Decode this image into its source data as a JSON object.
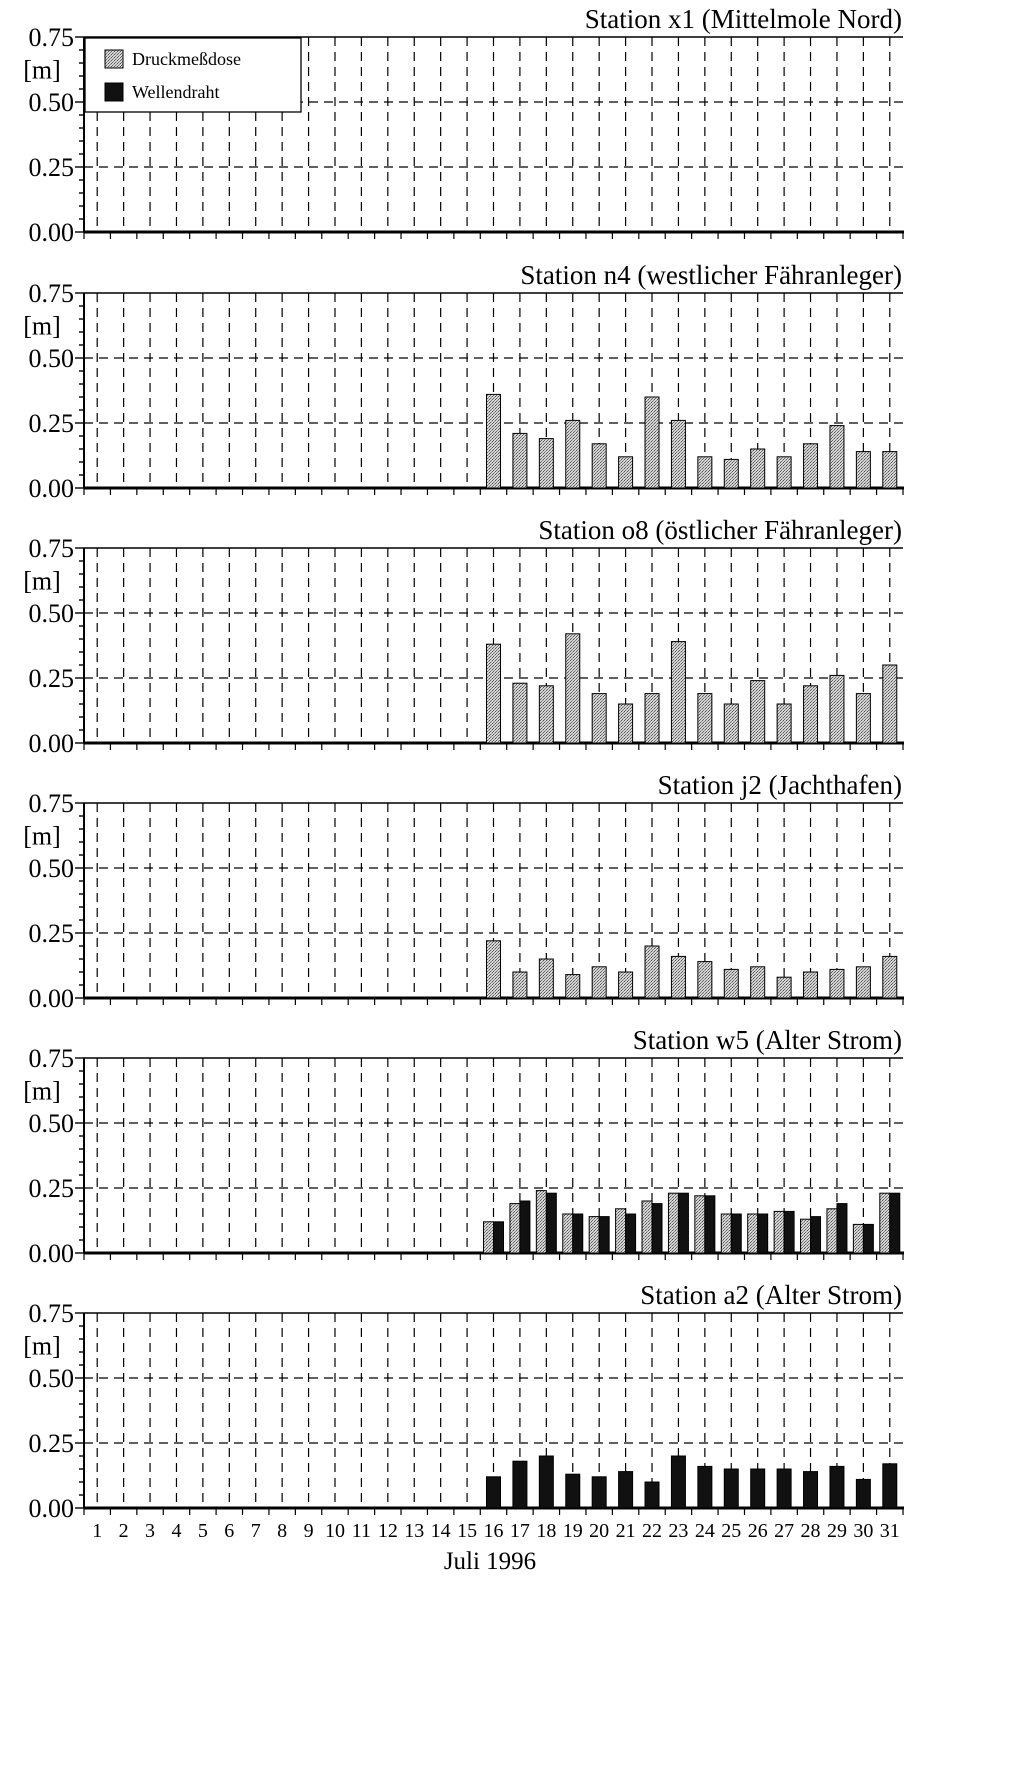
{
  "page": {
    "xlabel": "Juli 1996",
    "unit_label": "[m]"
  },
  "legend": {
    "items": [
      {
        "label": "Druckmeßdose",
        "color": "#b8b8b8",
        "pattern": "dotted-gray"
      },
      {
        "label": "Wellendraht",
        "color": "#111111",
        "pattern": "solid-black"
      }
    ]
  },
  "chart_data": [
    {
      "type": "bar",
      "title": "Station x1 (Mittelmole Nord)",
      "xlabel": "Juli 1996",
      "ylabel": "[m]",
      "ylim": [
        0,
        0.75
      ],
      "yticks": [
        "0.00",
        "0.25",
        "0.50",
        "0.75"
      ],
      "categories": [
        "1",
        "2",
        "3",
        "4",
        "5",
        "6",
        "7",
        "8",
        "9",
        "10",
        "11",
        "12",
        "13",
        "14",
        "15",
        "16",
        "17",
        "18",
        "19",
        "20",
        "21",
        "22",
        "23",
        "24",
        "25",
        "26",
        "27",
        "28",
        "29",
        "30",
        "31"
      ],
      "series": [
        {
          "name": "Druckmeßdose",
          "values": [
            null,
            null,
            null,
            null,
            null,
            null,
            null,
            null,
            null,
            null,
            null,
            null,
            null,
            null,
            null,
            null,
            null,
            null,
            null,
            null,
            null,
            null,
            null,
            null,
            null,
            null,
            null,
            null,
            null,
            null,
            null
          ]
        },
        {
          "name": "Wellendraht",
          "values": [
            null,
            null,
            null,
            null,
            null,
            null,
            null,
            null,
            null,
            null,
            null,
            null,
            null,
            null,
            null,
            null,
            null,
            null,
            null,
            null,
            null,
            null,
            null,
            null,
            null,
            null,
            null,
            null,
            null,
            null,
            null
          ]
        }
      ],
      "grid": true,
      "legend_position": "top-left"
    },
    {
      "type": "bar",
      "title": "Station n4 (westlicher Fähranleger)",
      "xlabel": "Juli 1996",
      "ylabel": "[m]",
      "ylim": [
        0,
        0.75
      ],
      "yticks": [
        "0.00",
        "0.25",
        "0.50",
        "0.75"
      ],
      "categories": [
        "1",
        "2",
        "3",
        "4",
        "5",
        "6",
        "7",
        "8",
        "9",
        "10",
        "11",
        "12",
        "13",
        "14",
        "15",
        "16",
        "17",
        "18",
        "19",
        "20",
        "21",
        "22",
        "23",
        "24",
        "25",
        "26",
        "27",
        "28",
        "29",
        "30",
        "31"
      ],
      "series": [
        {
          "name": "Druckmeßdose",
          "values": [
            null,
            null,
            null,
            null,
            null,
            null,
            null,
            null,
            null,
            null,
            null,
            null,
            null,
            null,
            null,
            0.36,
            0.21,
            0.19,
            0.26,
            0.17,
            0.12,
            0.35,
            0.26,
            0.12,
            0.11,
            0.15,
            0.12,
            0.17,
            0.24,
            0.14,
            0.14
          ]
        },
        {
          "name": "Wellendraht",
          "values": [
            null,
            null,
            null,
            null,
            null,
            null,
            null,
            null,
            null,
            null,
            null,
            null,
            null,
            null,
            null,
            null,
            null,
            null,
            null,
            null,
            null,
            null,
            null,
            null,
            null,
            null,
            null,
            null,
            null,
            null,
            null
          ]
        }
      ],
      "grid": true
    },
    {
      "type": "bar",
      "title": "Station o8 (östlicher Fähranleger)",
      "xlabel": "Juli 1996",
      "ylabel": "[m]",
      "ylim": [
        0,
        0.75
      ],
      "yticks": [
        "0.00",
        "0.25",
        "0.50",
        "0.75"
      ],
      "categories": [
        "1",
        "2",
        "3",
        "4",
        "5",
        "6",
        "7",
        "8",
        "9",
        "10",
        "11",
        "12",
        "13",
        "14",
        "15",
        "16",
        "17",
        "18",
        "19",
        "20",
        "21",
        "22",
        "23",
        "24",
        "25",
        "26",
        "27",
        "28",
        "29",
        "30",
        "31"
      ],
      "series": [
        {
          "name": "Druckmeßdose",
          "values": [
            null,
            null,
            null,
            null,
            null,
            null,
            null,
            null,
            null,
            null,
            null,
            null,
            null,
            null,
            null,
            0.38,
            0.23,
            0.22,
            0.42,
            0.19,
            0.15,
            0.19,
            0.39,
            0.19,
            0.15,
            0.24,
            0.15,
            0.22,
            0.26,
            0.19,
            0.3
          ]
        },
        {
          "name": "Wellendraht",
          "values": [
            null,
            null,
            null,
            null,
            null,
            null,
            null,
            null,
            null,
            null,
            null,
            null,
            null,
            null,
            null,
            null,
            null,
            null,
            null,
            null,
            null,
            null,
            null,
            null,
            null,
            null,
            null,
            null,
            null,
            null,
            null
          ]
        }
      ],
      "grid": true
    },
    {
      "type": "bar",
      "title": "Station j2 (Jachthafen)",
      "xlabel": "Juli 1996",
      "ylabel": "[m]",
      "ylim": [
        0,
        0.75
      ],
      "yticks": [
        "0.00",
        "0.25",
        "0.50",
        "0.75"
      ],
      "categories": [
        "1",
        "2",
        "3",
        "4",
        "5",
        "6",
        "7",
        "8",
        "9",
        "10",
        "11",
        "12",
        "13",
        "14",
        "15",
        "16",
        "17",
        "18",
        "19",
        "20",
        "21",
        "22",
        "23",
        "24",
        "25",
        "26",
        "27",
        "28",
        "29",
        "30",
        "31"
      ],
      "series": [
        {
          "name": "Druckmeßdose",
          "values": [
            null,
            null,
            null,
            null,
            null,
            null,
            null,
            null,
            null,
            null,
            null,
            null,
            null,
            null,
            null,
            0.22,
            0.1,
            0.15,
            0.09,
            0.12,
            0.1,
            0.2,
            0.16,
            0.14,
            0.11,
            0.12,
            0.08,
            0.1,
            0.11,
            0.12,
            0.16
          ]
        },
        {
          "name": "Wellendraht",
          "values": [
            null,
            null,
            null,
            null,
            null,
            null,
            null,
            null,
            null,
            null,
            null,
            null,
            null,
            null,
            null,
            null,
            null,
            null,
            null,
            null,
            null,
            null,
            null,
            null,
            null,
            null,
            null,
            null,
            null,
            null,
            null
          ]
        }
      ],
      "grid": true
    },
    {
      "type": "bar",
      "title": "Station w5 (Alter Strom)",
      "xlabel": "Juli 1996",
      "ylabel": "[m]",
      "ylim": [
        0,
        0.75
      ],
      "yticks": [
        "0.00",
        "0.25",
        "0.50",
        "0.75"
      ],
      "categories": [
        "1",
        "2",
        "3",
        "4",
        "5",
        "6",
        "7",
        "8",
        "9",
        "10",
        "11",
        "12",
        "13",
        "14",
        "15",
        "16",
        "17",
        "18",
        "19",
        "20",
        "21",
        "22",
        "23",
        "24",
        "25",
        "26",
        "27",
        "28",
        "29",
        "30",
        "31"
      ],
      "series": [
        {
          "name": "Druckmeßdose",
          "values": [
            null,
            null,
            null,
            null,
            null,
            null,
            null,
            null,
            null,
            null,
            null,
            null,
            null,
            null,
            null,
            0.12,
            0.19,
            0.24,
            0.15,
            0.14,
            0.17,
            0.2,
            0.23,
            0.22,
            0.15,
            0.15,
            0.16,
            0.13,
            0.17,
            0.11,
            0.23
          ]
        },
        {
          "name": "Wellendraht",
          "values": [
            null,
            null,
            null,
            null,
            null,
            null,
            null,
            null,
            null,
            null,
            null,
            null,
            null,
            null,
            null,
            0.12,
            0.2,
            0.23,
            0.15,
            0.14,
            0.15,
            0.19,
            0.23,
            0.22,
            0.15,
            0.15,
            0.16,
            0.14,
            0.19,
            0.11,
            0.23
          ]
        }
      ],
      "grid": true
    },
    {
      "type": "bar",
      "title": "Station a2 (Alter Strom)",
      "xlabel": "Juli 1996",
      "ylabel": "[m]",
      "ylim": [
        0,
        0.75
      ],
      "yticks": [
        "0.00",
        "0.25",
        "0.50",
        "0.75"
      ],
      "categories": [
        "1",
        "2",
        "3",
        "4",
        "5",
        "6",
        "7",
        "8",
        "9",
        "10",
        "11",
        "12",
        "13",
        "14",
        "15",
        "16",
        "17",
        "18",
        "19",
        "20",
        "21",
        "22",
        "23",
        "24",
        "25",
        "26",
        "27",
        "28",
        "29",
        "30",
        "31"
      ],
      "series": [
        {
          "name": "Druckmeßdose",
          "values": [
            null,
            null,
            null,
            null,
            null,
            null,
            null,
            null,
            null,
            null,
            null,
            null,
            null,
            null,
            null,
            null,
            null,
            null,
            null,
            null,
            null,
            null,
            null,
            null,
            null,
            null,
            null,
            null,
            null,
            null,
            null
          ]
        },
        {
          "name": "Wellendraht",
          "values": [
            null,
            null,
            null,
            null,
            null,
            null,
            null,
            null,
            null,
            null,
            null,
            null,
            null,
            null,
            null,
            0.12,
            0.18,
            0.2,
            0.13,
            0.12,
            0.14,
            0.1,
            0.2,
            0.16,
            0.15,
            0.15,
            0.15,
            0.14,
            0.16,
            0.11,
            0.17
          ]
        }
      ],
      "grid": true
    }
  ]
}
